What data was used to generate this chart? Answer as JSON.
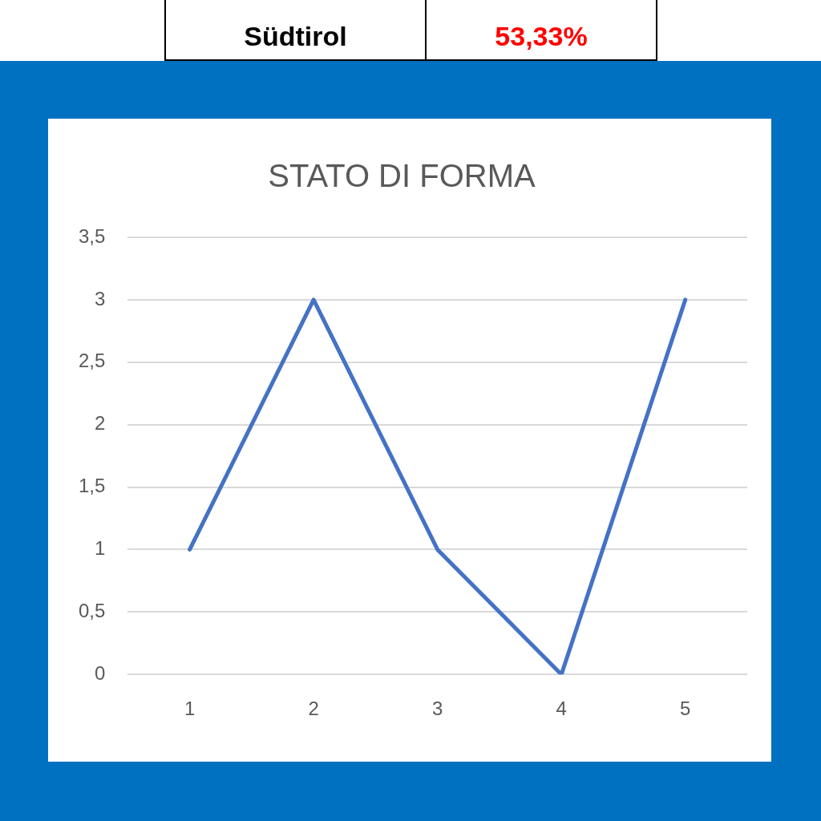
{
  "chart_data": {
    "type": "line",
    "title": "STATO DI FORMA",
    "categories": [
      "1",
      "2",
      "3",
      "4",
      "5"
    ],
    "series": [
      {
        "color": "#4472c4",
        "values": [
          1,
          3,
          1,
          0,
          3
        ]
      }
    ],
    "ylim": [
      0,
      3.5
    ],
    "yticks": [
      0,
      {
        "value": 0.5,
        "label": "0,5"
      },
      1,
      {
        "value": 1.5,
        "label": "1,5"
      },
      2,
      {
        "value": 2.5,
        "label": "2,5"
      },
      3,
      {
        "value": 3.5,
        "label": "3,5"
      }
    ],
    "grid": "y",
    "legend": false,
    "marker": "none",
    "annotations": [
      "Südtirol",
      "53,33%"
    ]
  }
}
